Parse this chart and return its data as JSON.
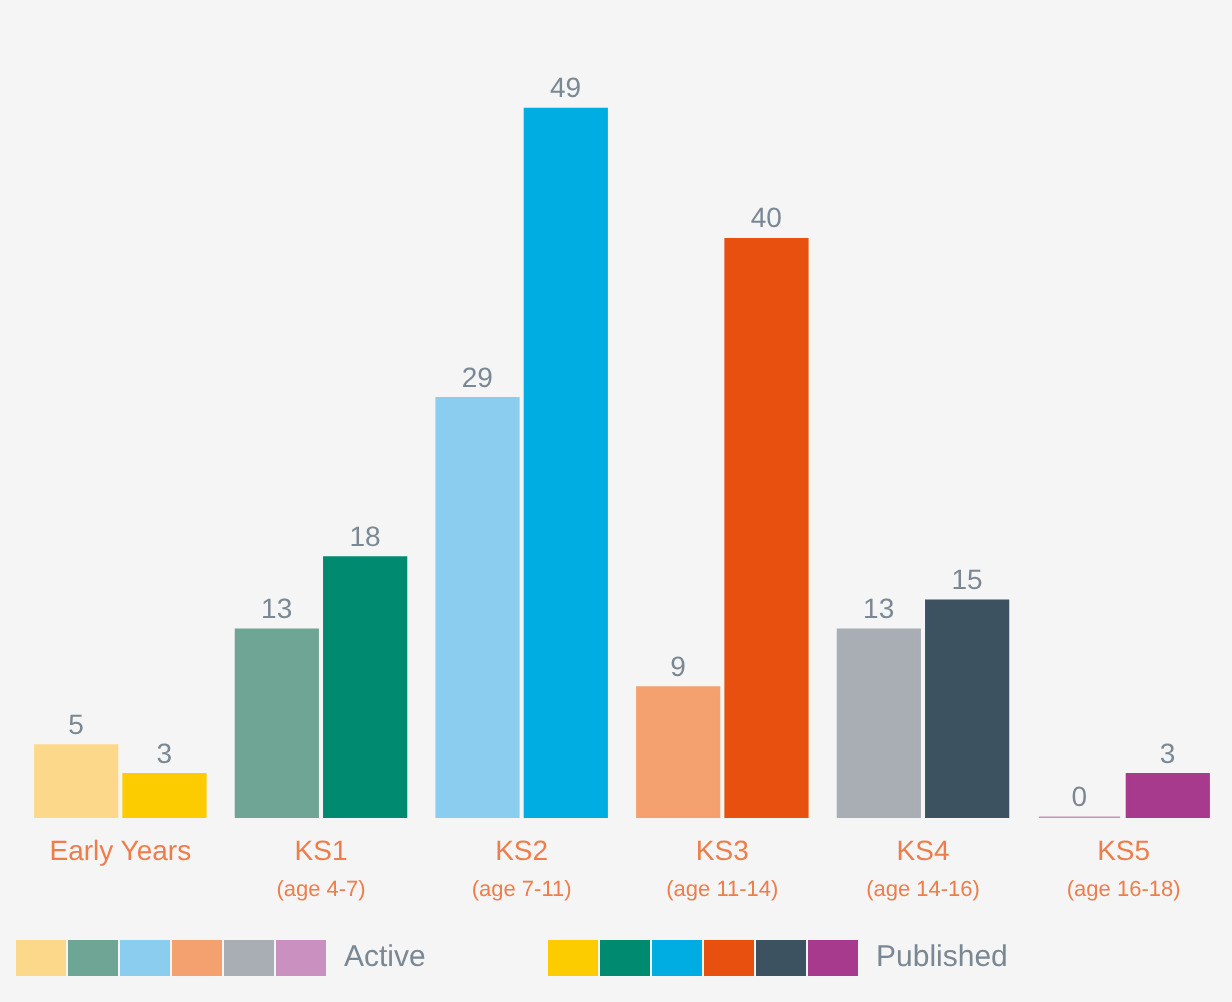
{
  "chart_data": {
    "type": "bar",
    "categories": [
      "Early Years",
      "KS1\n(age 4-7)",
      "KS2\n(age 7-11)",
      "KS3\n(age 11-14)",
      "KS4\n(age 14-16)",
      "KS5\n(age 16-18)"
    ],
    "series": [
      {
        "name": "Active",
        "colors": [
          "#fcd98a",
          "#6fa595",
          "#8bcdee",
          "#f4a06f",
          "#a9adb4",
          "#c990c0"
        ],
        "values": [
          5,
          13,
          29,
          9,
          13,
          0
        ]
      },
      {
        "name": "Published",
        "colors": [
          "#fccb00",
          "#008a70",
          "#00ade2",
          "#e8500f",
          "#3d5261",
          "#a73a8d"
        ],
        "values": [
          3,
          18,
          49,
          40,
          15,
          3
        ]
      }
    ],
    "data_labels": true,
    "legend": "bottom"
  }
}
